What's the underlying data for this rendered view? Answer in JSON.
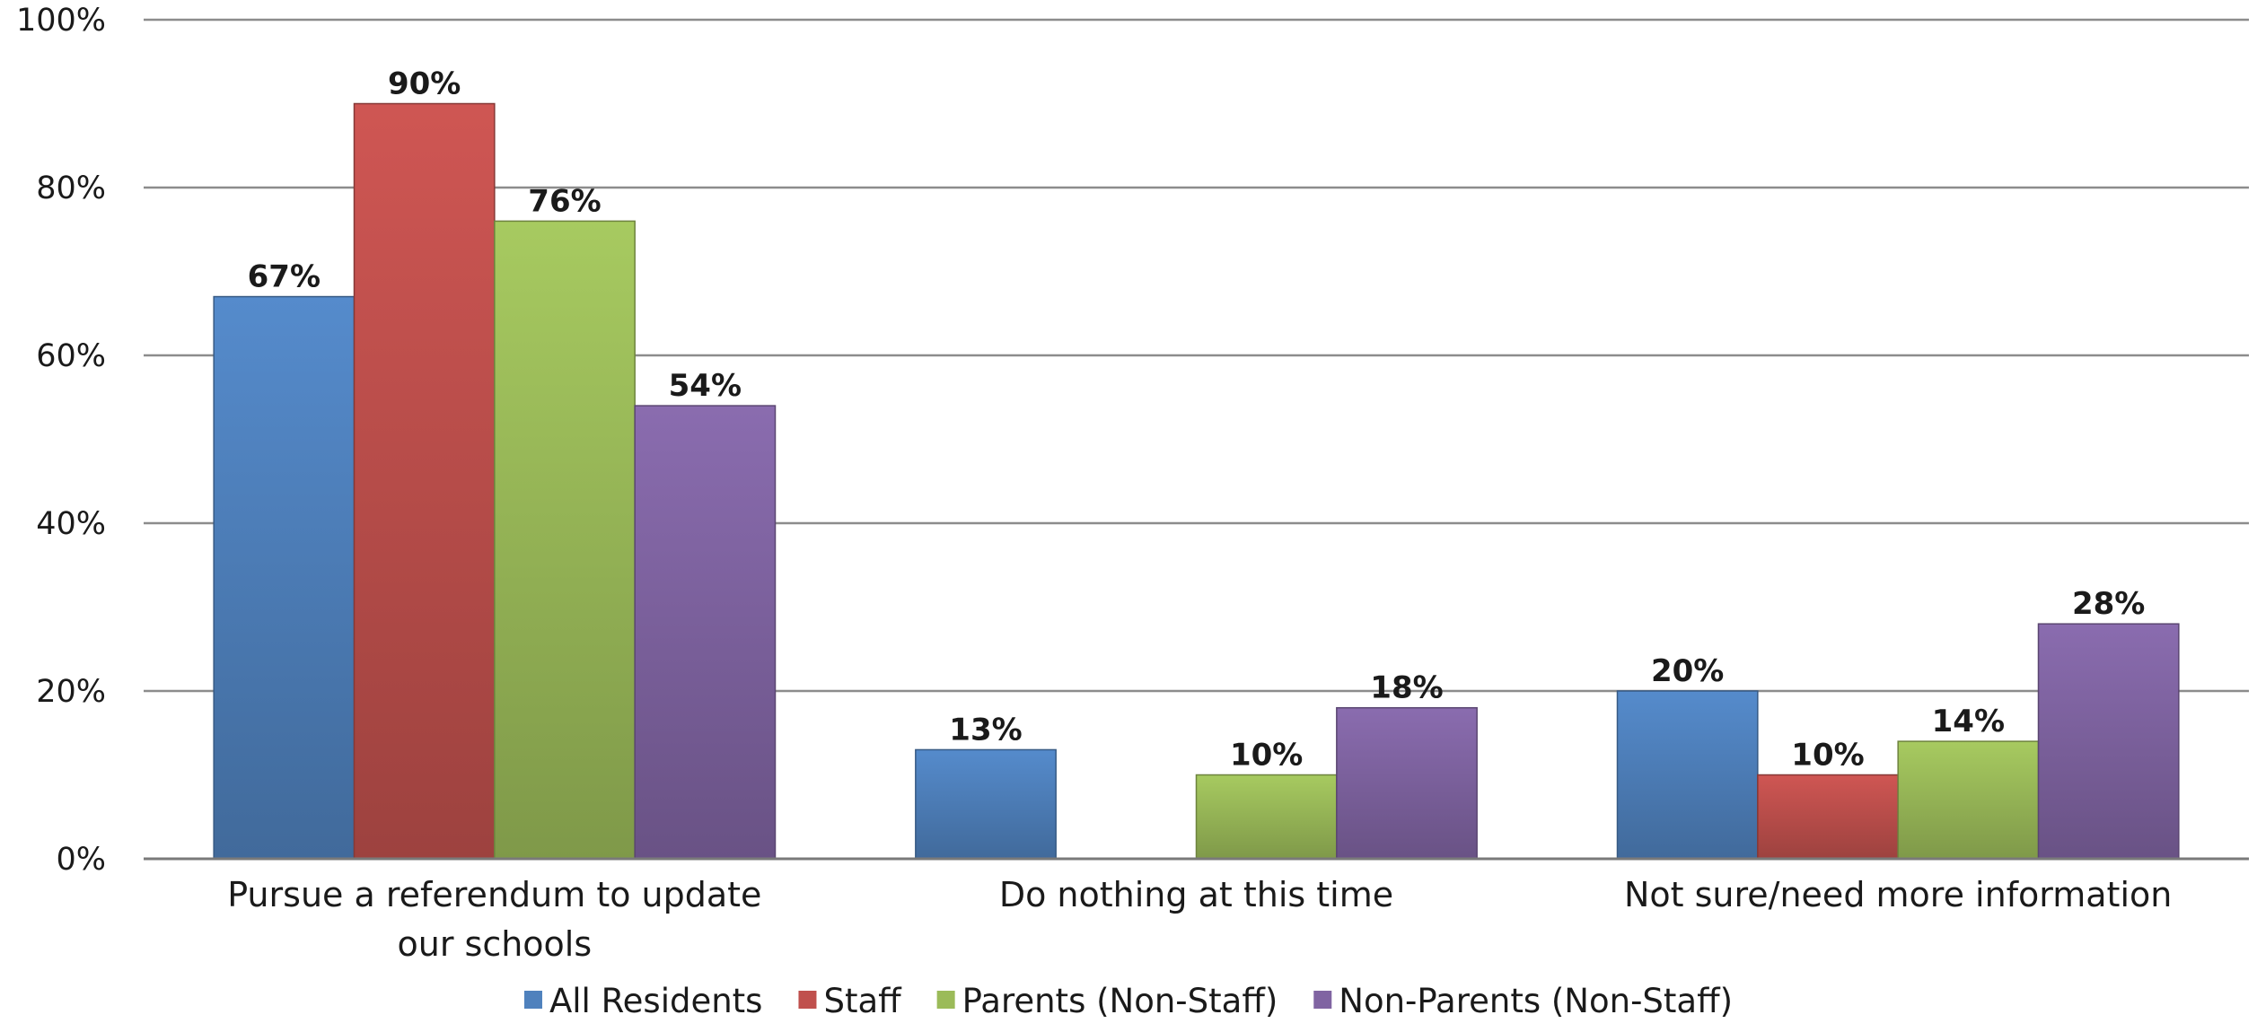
{
  "chart_data": {
    "type": "bar",
    "categories": [
      [
        "Pursue a referendum to update",
        "our schools"
      ],
      [
        "Do nothing at this time"
      ],
      [
        "Not sure/need more information"
      ]
    ],
    "y_tick_labels": [
      "0%",
      "20%",
      "40%",
      "60%",
      "80%",
      "100%"
    ],
    "ylim": [
      0,
      100
    ],
    "grid": true,
    "legend_position": "bottom",
    "series": [
      {
        "name": "All Residents",
        "color": "#4F81BD",
        "values": [
          67,
          13,
          20
        ],
        "labels": [
          "67%",
          "13%",
          "20%"
        ]
      },
      {
        "name": "Staff",
        "color": "#C0504D",
        "values": [
          90,
          null,
          10
        ],
        "labels": [
          "90%",
          "",
          "10%"
        ]
      },
      {
        "name": "Parents (Non-Staff)",
        "color": "#9BBB59",
        "values": [
          76,
          10,
          14
        ],
        "labels": [
          "76%",
          "10%",
          "14%"
        ]
      },
      {
        "name": "Non-Parents (Non-Staff)",
        "color": "#8064A2",
        "values": [
          54,
          18,
          28
        ],
        "labels": [
          "54%",
          "18%",
          "28%"
        ]
      }
    ]
  }
}
